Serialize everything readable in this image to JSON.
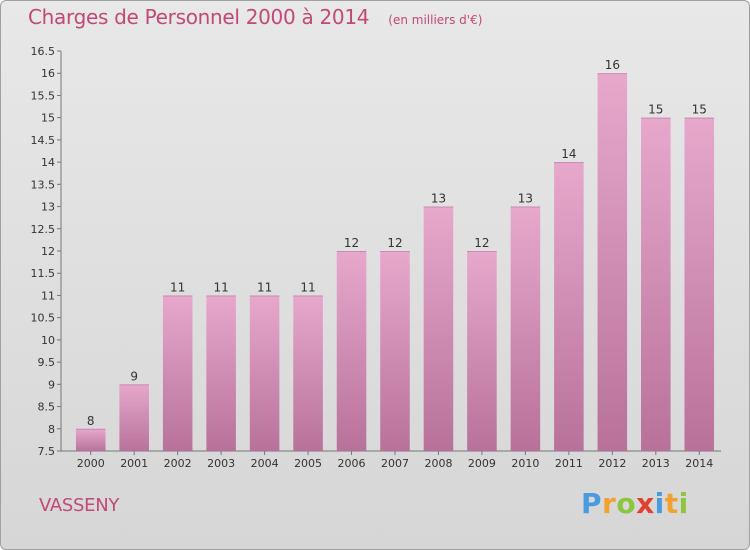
{
  "title": "Charges de Personnel 2000 à 2014",
  "units": "(en milliers d'€)",
  "commune": "VASSENY",
  "logo": {
    "p": "P",
    "r": "r",
    "o": "o",
    "x": "x",
    "i1": "i",
    "t": "t",
    "i2": "i"
  },
  "colors": {
    "bar_top": "#e7a8cc",
    "bar_bottom": "#b8729a",
    "title": "#c24878"
  },
  "chart_data": {
    "type": "bar",
    "title": "Charges de Personnel 2000 à 2014",
    "subtitle": "(en milliers d'€)",
    "xlabel": "",
    "ylabel": "",
    "ylim": [
      7.5,
      16.5
    ],
    "yticks": [
      "7.5",
      "8",
      "8.5",
      "9",
      "9.5",
      "10",
      "10.5",
      "11",
      "11.5",
      "12",
      "12.5",
      "13",
      "13.5",
      "14",
      "14.5",
      "15",
      "15.5",
      "16",
      "16.5"
    ],
    "grid": false,
    "categories": [
      "2000",
      "2001",
      "2002",
      "2003",
      "2004",
      "2005",
      "2006",
      "2007",
      "2008",
      "2009",
      "2010",
      "2011",
      "2012",
      "2013",
      "2014"
    ],
    "values": [
      8,
      9,
      11,
      11,
      11,
      11,
      12,
      12,
      13,
      12,
      13,
      14,
      16,
      15,
      15
    ]
  }
}
